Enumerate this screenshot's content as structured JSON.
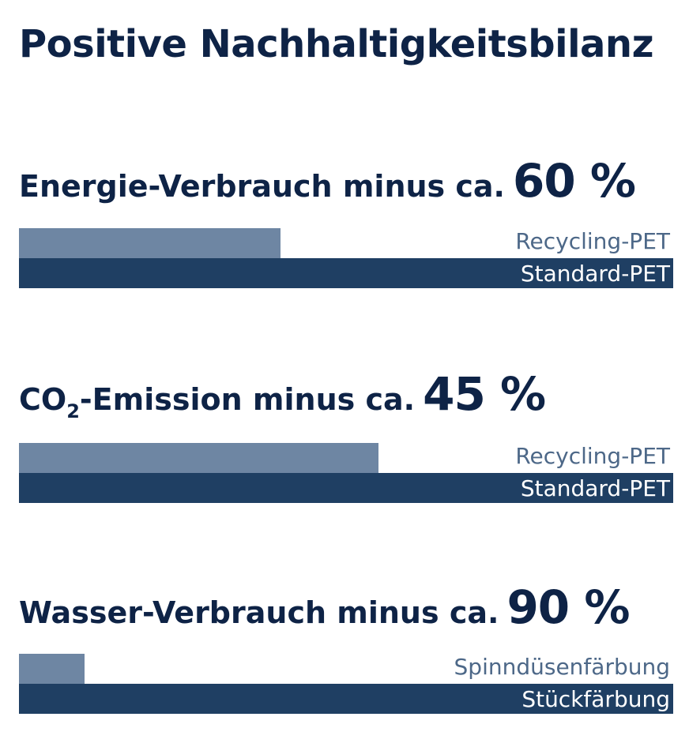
{
  "title": "Positive Nachhaltigkeitsbilanz",
  "colors": {
    "heading": "#0e2346",
    "reduced_bar": "#6e86a3",
    "baseline_bar": "#1f3f63",
    "label_light": "#4d6888"
  },
  "chart_data": [
    {
      "type": "bar",
      "orientation": "horizontal",
      "heading": "Energie-Verbrauch minus ca.",
      "percent": "60 %",
      "categories": [
        "Recycling-PET",
        "Standard-PET"
      ],
      "values": [
        40,
        100
      ],
      "xlim": [
        0,
        100
      ]
    },
    {
      "type": "bar",
      "orientation": "horizontal",
      "heading_prefix": "CO",
      "heading_sub": "2",
      "heading": "-Emission minus ca.",
      "percent": "45 %",
      "categories": [
        "Recycling-PET",
        "Standard-PET"
      ],
      "values": [
        55,
        100
      ],
      "xlim": [
        0,
        100
      ]
    },
    {
      "type": "bar",
      "orientation": "horizontal",
      "heading": "Wasser-Verbrauch minus ca.",
      "percent": "90 %",
      "categories": [
        "Spinndüsenfärbung",
        "Stückfärbung"
      ],
      "values": [
        10,
        100
      ],
      "xlim": [
        0,
        100
      ]
    }
  ]
}
